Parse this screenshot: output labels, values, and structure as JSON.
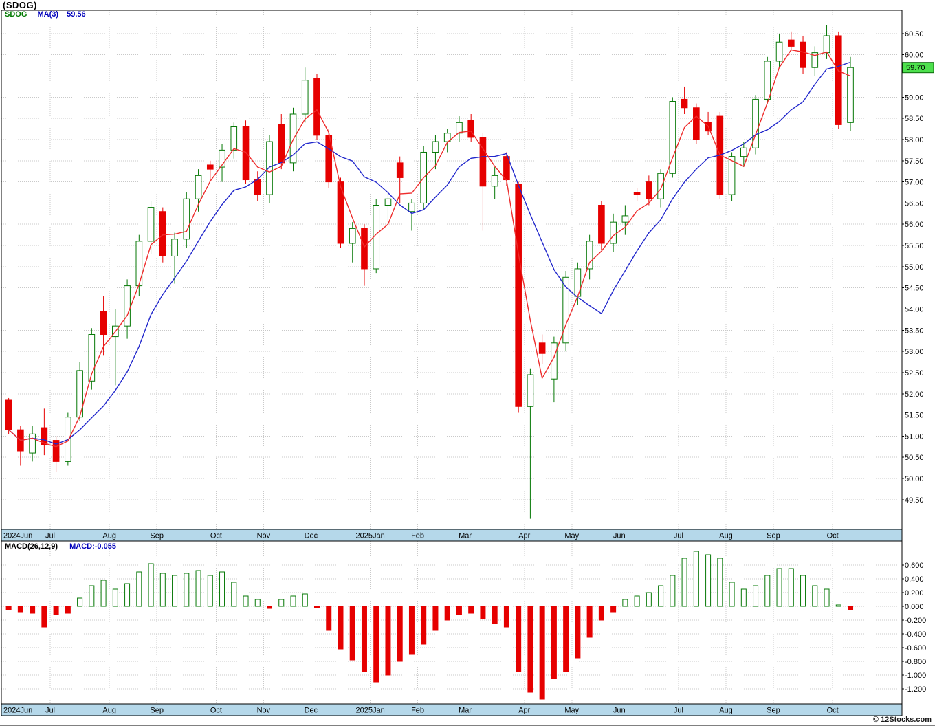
{
  "header": {
    "title": "(SDOG)"
  },
  "main_legend": {
    "symbol": "SDOG",
    "ma_label": "MA(3)",
    "ma_value": "59.56"
  },
  "macd_legend": {
    "left": "MACD(26,12,9)",
    "right": "MACD:-0.055"
  },
  "watermark": "© 12Stocks.com",
  "last_price_label": "59.70",
  "colors": {
    "up_fill": "#ffffff",
    "up_border": "#067806",
    "down": "#e60000",
    "ma_fast": "#ee2c2c",
    "ma_slow": "#2228cc",
    "band": "#b5d8ea",
    "grid": "#c9c9c9",
    "price_tag": "#4de04d",
    "price_tag_border": "#0a660a"
  },
  "chart_data": {
    "type": "candlestick",
    "symbol": "SDOG",
    "timeframe": "weekly",
    "x_ticks": {
      "indices": [
        0,
        4,
        9,
        13,
        18,
        22,
        26,
        31,
        35,
        39,
        44,
        48,
        52,
        57,
        61,
        65,
        70
      ],
      "labels": [
        "2024Jun",
        "Jul",
        "Aug",
        "Sep",
        "Oct",
        "Nov",
        "Dec",
        "2025Jan",
        "Feb",
        "Mar",
        "Apr",
        "May",
        "Jun",
        "Jul",
        "Aug",
        "Sep",
        "Oct"
      ]
    },
    "price_panel": {
      "ylim": [
        48.8,
        61.05
      ],
      "y_ticks": [
        60.5,
        60.0,
        59.5,
        59.0,
        58.5,
        58.0,
        57.5,
        57.0,
        56.5,
        56.0,
        55.5,
        55.0,
        54.5,
        54.0,
        53.5,
        53.0,
        52.5,
        52.0,
        51.5,
        51.0,
        50.5,
        50.0,
        49.5
      ],
      "last_price": 59.7,
      "ma_fast_period": 3,
      "ma_slow_period": 8,
      "candles": [
        [
          51.85,
          51.9,
          51.05,
          51.15
        ],
        [
          51.15,
          51.25,
          50.3,
          50.65
        ],
        [
          50.6,
          51.25,
          50.4,
          51.05
        ],
        [
          51.2,
          51.65,
          50.55,
          50.8
        ],
        [
          50.9,
          51.0,
          50.15,
          50.4
        ],
        [
          50.4,
          51.55,
          50.3,
          51.45
        ],
        [
          51.45,
          52.75,
          51.35,
          52.55
        ],
        [
          52.3,
          53.55,
          52.1,
          53.4
        ],
        [
          53.95,
          54.3,
          52.9,
          53.4
        ],
        [
          53.35,
          54.0,
          52.2,
          53.6
        ],
        [
          53.6,
          54.7,
          53.3,
          54.55
        ],
        [
          54.55,
          55.75,
          54.3,
          55.6
        ],
        [
          55.6,
          56.55,
          55.3,
          56.4
        ],
        [
          56.3,
          56.4,
          55.1,
          55.25
        ],
        [
          55.25,
          55.8,
          54.6,
          55.65
        ],
        [
          55.65,
          56.75,
          55.45,
          56.6
        ],
        [
          56.6,
          57.3,
          56.3,
          57.15
        ],
        [
          57.4,
          57.5,
          57.05,
          57.3
        ],
        [
          57.35,
          57.9,
          57.0,
          57.75
        ],
        [
          57.75,
          58.4,
          57.55,
          58.3
        ],
        [
          58.3,
          58.45,
          56.95,
          57.05
        ],
        [
          57.05,
          57.25,
          56.55,
          56.7
        ],
        [
          56.7,
          58.1,
          56.5,
          57.95
        ],
        [
          58.35,
          58.6,
          57.3,
          57.45
        ],
        [
          57.45,
          58.75,
          57.25,
          58.6
        ],
        [
          58.6,
          59.7,
          58.4,
          59.4
        ],
        [
          59.45,
          59.55,
          58.0,
          58.1
        ],
        [
          58.1,
          58.25,
          56.85,
          57.0
        ],
        [
          57.0,
          57.1,
          55.45,
          55.55
        ],
        [
          55.55,
          56.05,
          55.1,
          55.9
        ],
        [
          55.9,
          56.0,
          54.55,
          54.95
        ],
        [
          54.95,
          56.6,
          54.85,
          56.45
        ],
        [
          56.45,
          56.75,
          56.05,
          56.6
        ],
        [
          57.45,
          57.6,
          56.5,
          57.1
        ],
        [
          56.3,
          56.6,
          55.85,
          56.5
        ],
        [
          56.5,
          57.85,
          56.35,
          57.7
        ],
        [
          57.7,
          58.1,
          57.3,
          57.95
        ],
        [
          57.95,
          58.25,
          57.7,
          58.15
        ],
        [
          58.15,
          58.55,
          57.95,
          58.4
        ],
        [
          58.45,
          58.6,
          57.95,
          58.05
        ],
        [
          58.05,
          58.15,
          55.85,
          56.9
        ],
        [
          56.9,
          57.35,
          56.6,
          57.15
        ],
        [
          57.6,
          57.7,
          56.9,
          57.05
        ],
        [
          56.95,
          57.0,
          51.55,
          51.7
        ],
        [
          51.7,
          52.6,
          49.05,
          52.45
        ],
        [
          53.2,
          53.4,
          52.7,
          52.95
        ],
        [
          52.35,
          53.35,
          51.8,
          53.2
        ],
        [
          53.2,
          54.9,
          53.0,
          54.75
        ],
        [
          54.3,
          55.1,
          54.1,
          54.95
        ],
        [
          54.95,
          55.75,
          54.7,
          55.6
        ],
        [
          56.45,
          56.55,
          55.4,
          55.55
        ],
        [
          55.55,
          56.25,
          55.35,
          56.05
        ],
        [
          56.05,
          56.45,
          55.75,
          56.2
        ],
        [
          56.75,
          56.85,
          56.55,
          56.7
        ],
        [
          57.0,
          57.15,
          56.45,
          56.6
        ],
        [
          56.6,
          57.3,
          56.4,
          57.2
        ],
        [
          57.2,
          59.0,
          57.1,
          58.9
        ],
        [
          58.95,
          59.25,
          58.6,
          58.75
        ],
        [
          58.75,
          58.85,
          57.9,
          58.0
        ],
        [
          58.4,
          58.65,
          58.1,
          58.2
        ],
        [
          58.55,
          58.65,
          56.6,
          56.7
        ],
        [
          56.7,
          57.7,
          56.55,
          57.6
        ],
        [
          57.6,
          57.95,
          57.35,
          57.8
        ],
        [
          57.8,
          59.05,
          57.65,
          58.95
        ],
        [
          58.95,
          59.95,
          58.85,
          59.85
        ],
        [
          59.85,
          60.5,
          59.7,
          60.3
        ],
        [
          60.35,
          60.55,
          60.1,
          60.2
        ],
        [
          60.3,
          60.45,
          59.55,
          59.7
        ],
        [
          59.7,
          60.2,
          59.5,
          60.05
        ],
        [
          60.05,
          60.7,
          59.9,
          60.45
        ],
        [
          60.45,
          60.55,
          58.25,
          58.35
        ],
        [
          58.4,
          59.95,
          58.2,
          59.7
        ]
      ]
    },
    "macd_panel": {
      "params": "26,12,9",
      "last": -0.055,
      "ylim": [
        -1.42,
        0.95
      ],
      "y_ticks": [
        0.6,
        0.4,
        0.2,
        0.0,
        -0.2,
        -0.4,
        -0.6,
        -0.8,
        -1.0,
        -1.2
      ],
      "histogram": [
        -0.05,
        -0.08,
        -0.1,
        -0.3,
        -0.12,
        -0.1,
        0.12,
        0.3,
        0.38,
        0.25,
        0.33,
        0.5,
        0.62,
        0.48,
        0.45,
        0.48,
        0.52,
        0.45,
        0.5,
        0.35,
        0.15,
        0.1,
        -0.03,
        0.1,
        0.15,
        0.18,
        -0.02,
        -0.35,
        -0.62,
        -0.78,
        -0.95,
        -1.1,
        -1.0,
        -0.8,
        -0.7,
        -0.55,
        -0.35,
        -0.2,
        -0.12,
        -0.1,
        -0.18,
        -0.25,
        -0.3,
        -0.95,
        -1.25,
        -1.35,
        -1.05,
        -0.95,
        -0.75,
        -0.45,
        -0.2,
        -0.08,
        0.1,
        0.15,
        0.2,
        0.3,
        0.45,
        0.7,
        0.8,
        0.75,
        0.7,
        0.35,
        0.25,
        0.3,
        0.45,
        0.55,
        0.55,
        0.45,
        0.3,
        0.25,
        0.02,
        -0.055
      ]
    }
  }
}
